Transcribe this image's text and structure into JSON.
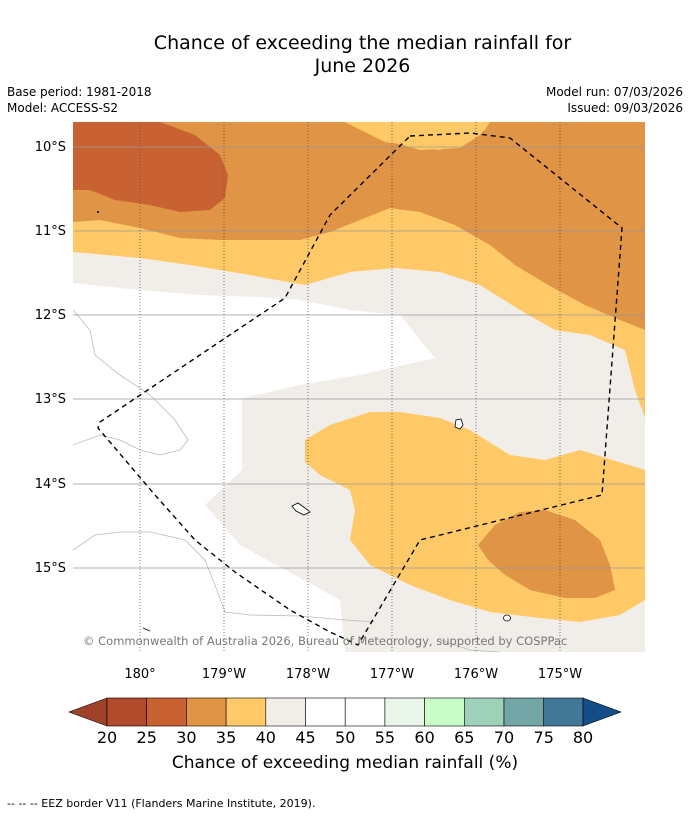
{
  "title": {
    "line1": "Chance of exceeding the median rainfall for",
    "line2": "June 2026"
  },
  "meta": {
    "base_period": "Base period: 1981-2018",
    "model": "Model: ACCESS-S2",
    "model_run": "Model run: 07/03/2026",
    "issued": "Issued: 09/03/2026"
  },
  "map": {
    "lat_labels": [
      "10°S",
      "11°S",
      "12°S",
      "13°S",
      "14°S",
      "15°S"
    ],
    "lon_labels": [
      "180°",
      "179°W",
      "178°W",
      "177°W",
      "176°W",
      "175°W"
    ],
    "copyright": "© Commonwealth of Australia 2026, Bureau of Meteorology, supported by COSPPac"
  },
  "colorbar": {
    "ticks": [
      "20",
      "25",
      "30",
      "35",
      "40",
      "45",
      "50",
      "55",
      "60",
      "65",
      "70",
      "75",
      "80"
    ],
    "colors": {
      "below20": "#a0412a",
      "c20_25": "#b24b2b",
      "c25_30": "#c96232",
      "c30_35": "#e09446",
      "c35_40": "#fec966",
      "c40_45": "#f1ede8",
      "c45_55": "#ffffff",
      "c55_60": "#eaf5ea",
      "c60_65": "#c8fdc8",
      "c65_70": "#9fd0b9",
      "c70_75": "#72a6a6",
      "c75_80": "#417896",
      "above80": "#134e88"
    },
    "label": "Chance of exceeding median rainfall (%)"
  },
  "footnote": "--  --  -- EEZ border V11 (Flanders Marine Institute, 2019)."
}
